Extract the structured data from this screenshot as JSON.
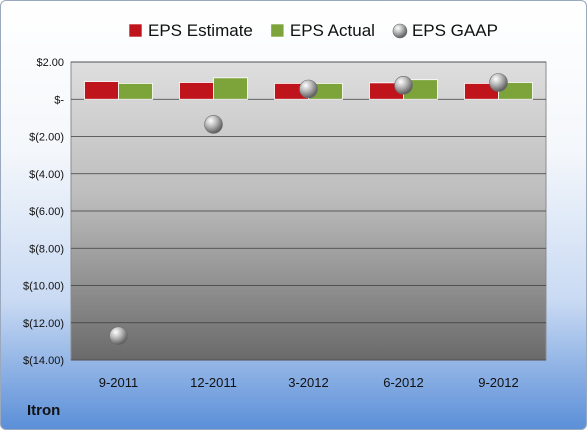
{
  "chart_data": {
    "type": "bar",
    "title": "",
    "xlabel": "",
    "ylabel": "",
    "categories": [
      "9-2011",
      "12-2011",
      "3-2012",
      "6-2012",
      "9-2012"
    ],
    "ylim": [
      -14,
      2
    ],
    "yticks": [
      2,
      0,
      -2,
      -4,
      -6,
      -8,
      -10,
      -12,
      -14
    ],
    "ytick_labels": [
      "$2.00",
      "$-",
      "$(2.00)",
      "$(4.00)",
      "$(6.00)",
      "$(8.00)",
      "$(10.00)",
      "$(12.00)",
      "$(14.00)"
    ],
    "grid": true,
    "legend": "top",
    "series": [
      {
        "name": "EPS Estimate",
        "kind": "bar",
        "color": "#c0141c",
        "values": [
          0.95,
          0.9,
          0.85,
          0.88,
          0.85
        ]
      },
      {
        "name": "EPS Actual",
        "kind": "bar",
        "color": "#7da33b",
        "values": [
          0.85,
          1.15,
          0.85,
          1.05,
          0.9
        ]
      },
      {
        "name": "EPS GAAP",
        "kind": "scatter",
        "color": "#a9a9a9",
        "values": [
          -12.7,
          -1.35,
          0.55,
          0.75,
          0.9
        ]
      }
    ]
  },
  "footer": {
    "company": "Itron"
  }
}
